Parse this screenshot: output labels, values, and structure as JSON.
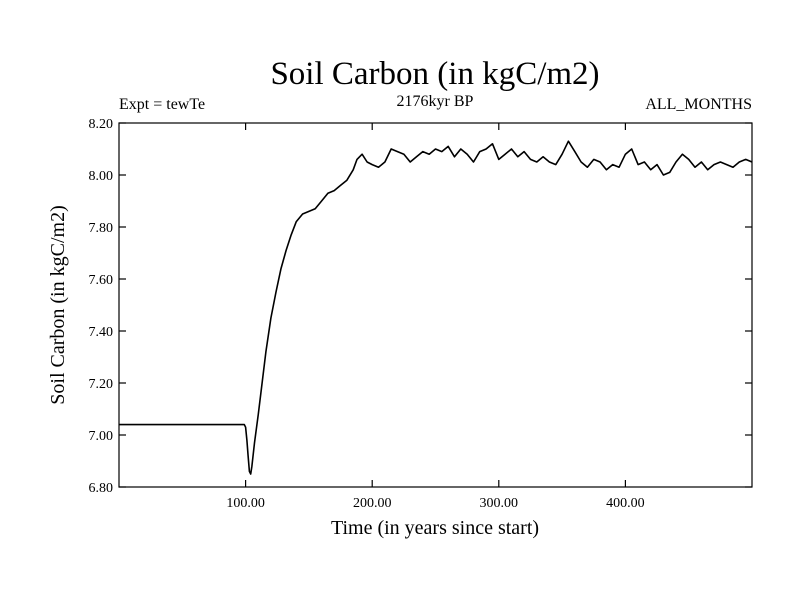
{
  "chart_data": {
    "type": "line",
    "title": "Soil Carbon (in kgC/m2)",
    "subtitle_left": "Expt = tewTe",
    "subtitle_center": "2176kyr BP",
    "subtitle_right": "ALL_MONTHS",
    "xlabel": "Time (in years since start)",
    "ylabel": "Soil Carbon (in kgC/m2)",
    "xlim": [
      0,
      500
    ],
    "ylim": [
      6.8,
      8.2
    ],
    "x_ticks": [
      100,
      200,
      300,
      400
    ],
    "x_tick_labels": [
      "100.00",
      "200.00",
      "300.00",
      "400.00"
    ],
    "y_ticks": [
      6.8,
      7.0,
      7.2,
      7.4,
      7.6,
      7.8,
      8.0,
      8.2
    ],
    "y_tick_labels": [
      "6.80",
      "7.00",
      "7.20",
      "7.40",
      "7.60",
      "7.80",
      "8.00",
      "8.20"
    ],
    "grid": false,
    "series": [
      {
        "name": "Soil Carbon",
        "color": "#000000",
        "x": [
          0,
          99,
          100,
          101,
          102,
          103,
          104,
          105,
          107,
          110,
          113,
          116,
          120,
          124,
          128,
          132,
          136,
          140,
          145,
          150,
          155,
          160,
          165,
          170,
          175,
          180,
          185,
          188,
          192,
          196,
          200,
          205,
          210,
          215,
          220,
          225,
          230,
          235,
          240,
          245,
          250,
          255,
          260,
          265,
          270,
          275,
          280,
          285,
          290,
          295,
          300,
          305,
          310,
          315,
          320,
          325,
          330,
          335,
          340,
          345,
          350,
          355,
          360,
          365,
          370,
          375,
          380,
          385,
          390,
          395,
          400,
          405,
          410,
          415,
          420,
          425,
          430,
          435,
          440,
          445,
          450,
          455,
          460,
          465,
          470,
          475,
          480,
          485,
          490,
          495,
          500
        ],
        "values": [
          7.04,
          7.04,
          7.03,
          6.98,
          6.92,
          6.86,
          6.85,
          6.88,
          6.97,
          7.08,
          7.2,
          7.32,
          7.45,
          7.55,
          7.64,
          7.71,
          7.77,
          7.82,
          7.85,
          7.86,
          7.87,
          7.9,
          7.93,
          7.94,
          7.96,
          7.98,
          8.02,
          8.06,
          8.08,
          8.05,
          8.04,
          8.03,
          8.05,
          8.1,
          8.09,
          8.08,
          8.05,
          8.07,
          8.09,
          8.08,
          8.1,
          8.09,
          8.11,
          8.07,
          8.1,
          8.08,
          8.05,
          8.09,
          8.1,
          8.12,
          8.06,
          8.08,
          8.1,
          8.07,
          8.09,
          8.06,
          8.05,
          8.07,
          8.05,
          8.04,
          8.08,
          8.13,
          8.09,
          8.05,
          8.03,
          8.06,
          8.05,
          8.02,
          8.04,
          8.03,
          8.08,
          8.1,
          8.04,
          8.05,
          8.02,
          8.04,
          8.0,
          8.01,
          8.05,
          8.08,
          8.06,
          8.03,
          8.05,
          8.02,
          8.04,
          8.05,
          8.04,
          8.03,
          8.05,
          8.06,
          8.05
        ]
      }
    ]
  }
}
